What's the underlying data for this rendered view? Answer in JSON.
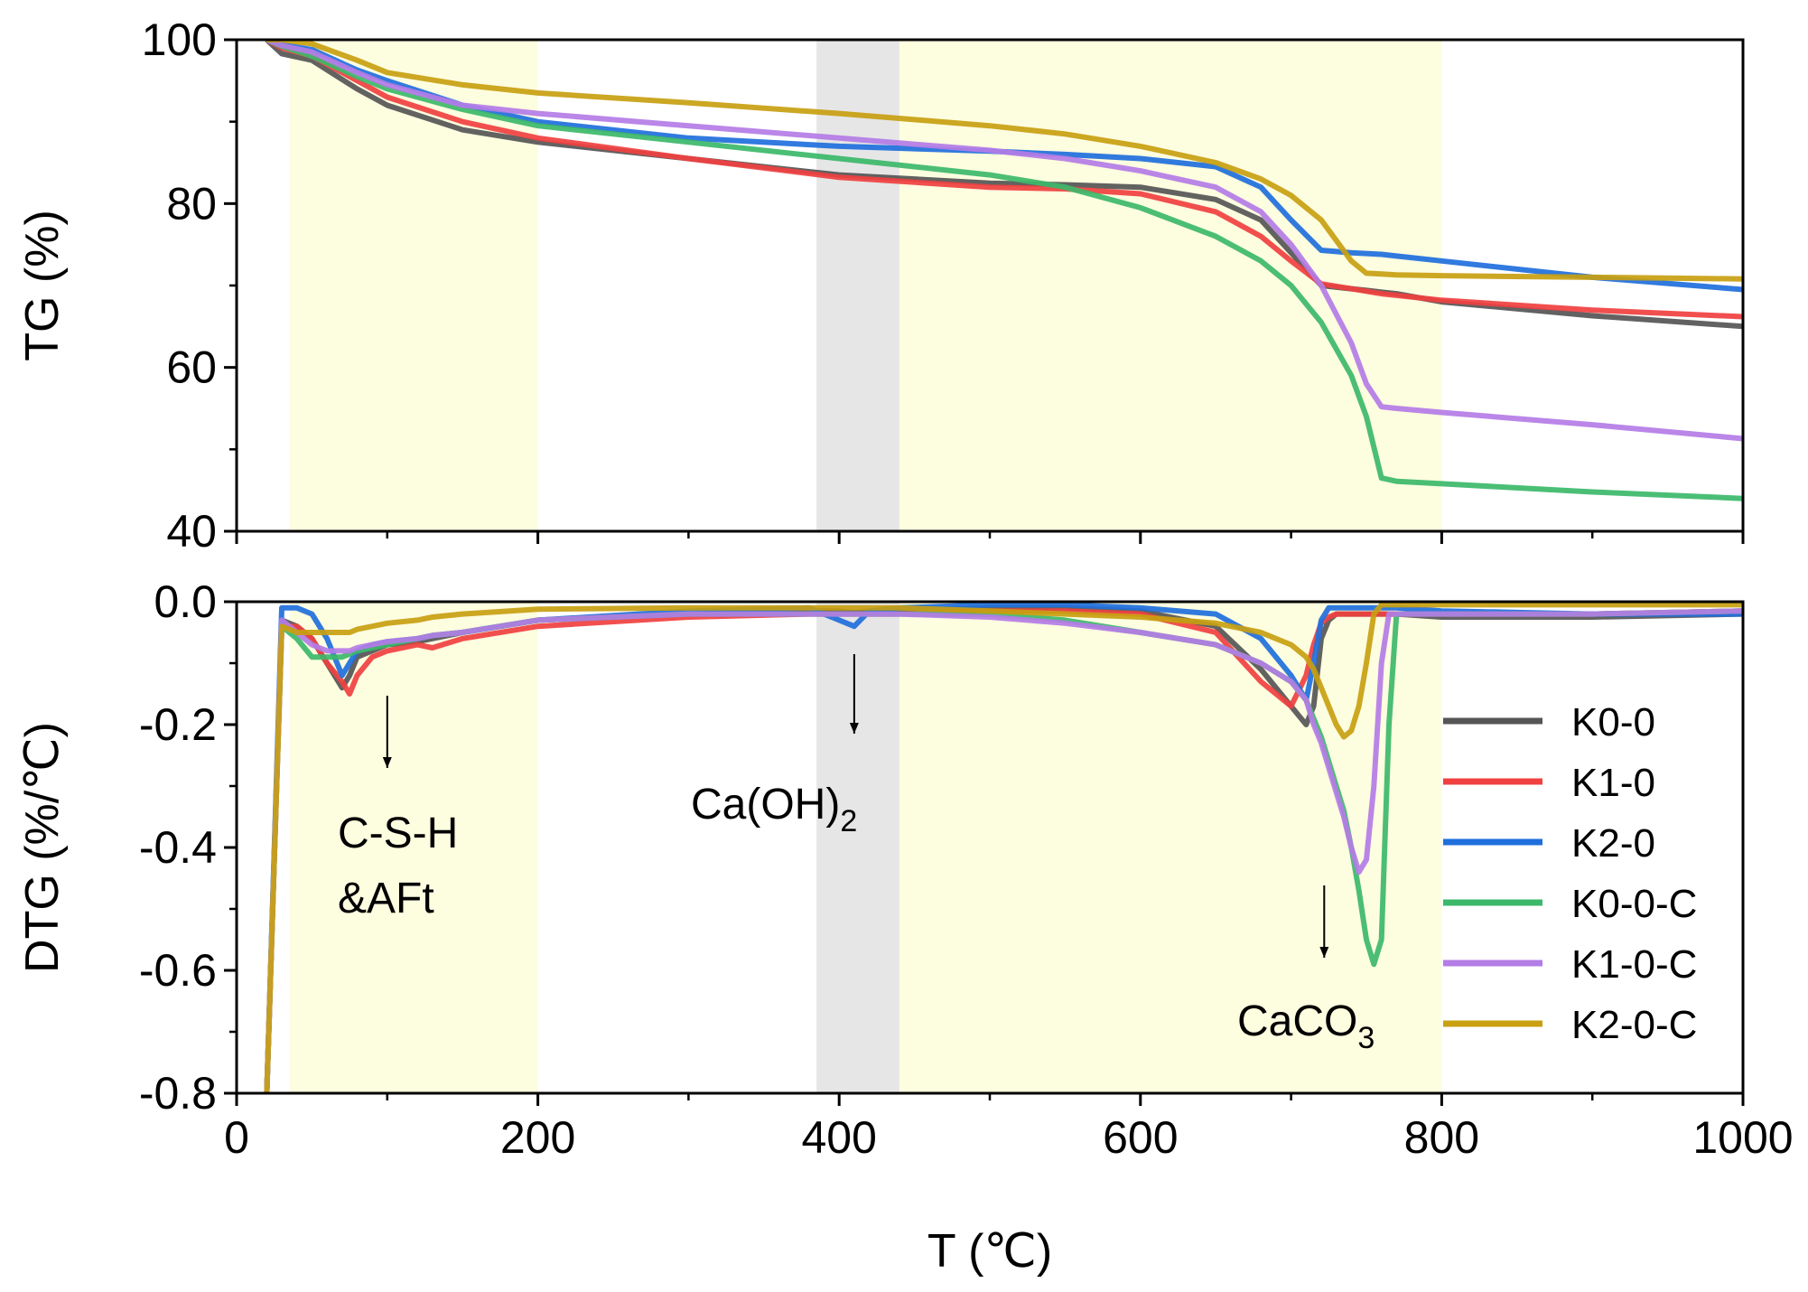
{
  "chart_data": [
    {
      "type": "line",
      "panel": "top",
      "title": "",
      "xlabel": "",
      "ylabel": "TG (%)",
      "xlim": [
        0,
        1000
      ],
      "ylim": [
        40,
        100
      ],
      "yticks": [
        "40",
        "60",
        "80",
        "100"
      ],
      "x": [
        20,
        30,
        50,
        80,
        100,
        150,
        200,
        300,
        400,
        500,
        550,
        600,
        650,
        680,
        700,
        720,
        740,
        750,
        760,
        770,
        800,
        900,
        1000
      ],
      "series": [
        {
          "name": "K0-0",
          "values": [
            100,
            98.3,
            97.5,
            94,
            92,
            89,
            87.5,
            85.5,
            83.5,
            82.5,
            82.3,
            82,
            80.5,
            78,
            74,
            70,
            69.6,
            69.4,
            69.2,
            69,
            68,
            66.3,
            65
          ]
        },
        {
          "name": "K1-0",
          "values": [
            100,
            99,
            98,
            95,
            93,
            90,
            88,
            85.5,
            83.2,
            82,
            81.8,
            81.2,
            79,
            76,
            73,
            70.2,
            69.6,
            69.3,
            69,
            68.8,
            68.2,
            67,
            66.2
          ]
        },
        {
          "name": "K2-0",
          "values": [
            100,
            99.4,
            98.8,
            96.3,
            95,
            92,
            90,
            88,
            87,
            86.4,
            86,
            85.5,
            84.5,
            82,
            78,
            74.3,
            74,
            73.9,
            73.8,
            73.6,
            73,
            71,
            69.5
          ]
        },
        {
          "name": "K0-0-C",
          "values": [
            100,
            99.2,
            98,
            95.5,
            94,
            91.5,
            89.5,
            87.5,
            85.5,
            83.5,
            82,
            79.5,
            76,
            73,
            70,
            65.5,
            59,
            54,
            46.5,
            46.1,
            45.8,
            44.8,
            44
          ]
        },
        {
          "name": "K1-0-C",
          "values": [
            100,
            99.3,
            98.5,
            96,
            94.5,
            92,
            91,
            89.5,
            88,
            86.5,
            85.5,
            84,
            82,
            79,
            75,
            70,
            63,
            58,
            55.2,
            55,
            54.5,
            53,
            51.3
          ]
        },
        {
          "name": "K2-0-C",
          "values": [
            100,
            100,
            99.5,
            97.5,
            96,
            94.5,
            93.5,
            92.3,
            91,
            89.5,
            88.5,
            87,
            85,
            83,
            81,
            78,
            73,
            71.5,
            71.4,
            71.3,
            71.2,
            71,
            70.8
          ]
        }
      ]
    },
    {
      "type": "line",
      "panel": "bottom",
      "title": "",
      "xlabel": "T (℃)",
      "ylabel": "DTG (%/℃)",
      "xlim": [
        0,
        1000
      ],
      "ylim": [
        -0.8,
        0
      ],
      "xticks": [
        "0",
        "200",
        "400",
        "600",
        "800",
        "1000"
      ],
      "yticks": [
        "-0.8",
        "-0.6",
        "-0.4",
        "-0.2",
        "0.0"
      ],
      "x": [
        20,
        30,
        40,
        50,
        60,
        70,
        75,
        80,
        90,
        100,
        120,
        130,
        150,
        200,
        300,
        380,
        400,
        410,
        420,
        440,
        500,
        550,
        600,
        650,
        680,
        700,
        710,
        715,
        720,
        725,
        730,
        735,
        740,
        745,
        750,
        755,
        760,
        765,
        770,
        800,
        900,
        1000
      ],
      "series": [
        {
          "name": "K0-0",
          "values": [
            -0.8,
            -0.03,
            -0.04,
            -0.06,
            -0.1,
            -0.14,
            -0.12,
            -0.09,
            -0.08,
            -0.07,
            -0.065,
            -0.06,
            -0.05,
            -0.03,
            -0.02,
            -0.015,
            -0.015,
            -0.018,
            -0.015,
            -0.015,
            -0.01,
            -0.01,
            -0.015,
            -0.04,
            -0.11,
            -0.17,
            -0.2,
            -0.17,
            -0.06,
            -0.03,
            -0.02,
            -0.02,
            -0.02,
            -0.02,
            -0.02,
            -0.02,
            -0.02,
            -0.02,
            -0.02,
            -0.025,
            -0.025,
            -0.02
          ]
        },
        {
          "name": "K1-0",
          "values": [
            -0.8,
            -0.04,
            -0.04,
            -0.06,
            -0.1,
            -0.13,
            -0.15,
            -0.12,
            -0.09,
            -0.08,
            -0.07,
            -0.075,
            -0.06,
            -0.04,
            -0.025,
            -0.02,
            -0.02,
            -0.02,
            -0.02,
            -0.02,
            -0.015,
            -0.015,
            -0.02,
            -0.05,
            -0.13,
            -0.17,
            -0.12,
            -0.07,
            -0.035,
            -0.025,
            -0.02,
            -0.02,
            -0.02,
            -0.02,
            -0.02,
            -0.02,
            -0.02,
            -0.02,
            -0.02,
            -0.02,
            -0.02,
            -0.015
          ]
        },
        {
          "name": "K2-0",
          "values": [
            -0.8,
            -0.01,
            -0.01,
            -0.02,
            -0.06,
            -0.12,
            -0.1,
            -0.08,
            -0.07,
            -0.065,
            -0.06,
            -0.055,
            -0.05,
            -0.03,
            -0.015,
            -0.01,
            -0.03,
            -0.04,
            -0.015,
            -0.01,
            -0.005,
            -0.005,
            -0.01,
            -0.02,
            -0.06,
            -0.12,
            -0.16,
            -0.1,
            -0.03,
            -0.01,
            -0.01,
            -0.01,
            -0.01,
            -0.01,
            -0.01,
            -0.01,
            -0.01,
            -0.01,
            -0.01,
            -0.015,
            -0.02,
            -0.02
          ]
        },
        {
          "name": "K0-0-C",
          "values": [
            -0.8,
            -0.04,
            -0.06,
            -0.09,
            -0.09,
            -0.09,
            -0.085,
            -0.08,
            -0.075,
            -0.07,
            -0.06,
            -0.055,
            -0.05,
            -0.03,
            -0.02,
            -0.02,
            -0.02,
            -0.02,
            -0.02,
            -0.02,
            -0.02,
            -0.03,
            -0.05,
            -0.07,
            -0.1,
            -0.13,
            -0.16,
            -0.19,
            -0.22,
            -0.26,
            -0.3,
            -0.34,
            -0.4,
            -0.47,
            -0.55,
            -0.59,
            -0.55,
            -0.2,
            -0.02,
            -0.02,
            -0.02,
            -0.015
          ]
        },
        {
          "name": "K1-0-C",
          "values": [
            -0.8,
            -0.03,
            -0.05,
            -0.07,
            -0.08,
            -0.08,
            -0.08,
            -0.075,
            -0.07,
            -0.065,
            -0.06,
            -0.055,
            -0.05,
            -0.03,
            -0.02,
            -0.02,
            -0.02,
            -0.02,
            -0.02,
            -0.02,
            -0.025,
            -0.035,
            -0.05,
            -0.07,
            -0.1,
            -0.13,
            -0.16,
            -0.2,
            -0.23,
            -0.27,
            -0.31,
            -0.35,
            -0.4,
            -0.44,
            -0.42,
            -0.3,
            -0.1,
            -0.02,
            -0.02,
            -0.02,
            -0.02,
            -0.015
          ]
        },
        {
          "name": "K2-0-C",
          "values": [
            -0.8,
            -0.04,
            -0.05,
            -0.05,
            -0.05,
            -0.05,
            -0.05,
            -0.045,
            -0.04,
            -0.035,
            -0.03,
            -0.025,
            -0.02,
            -0.012,
            -0.01,
            -0.01,
            -0.01,
            -0.01,
            -0.01,
            -0.01,
            -0.015,
            -0.02,
            -0.025,
            -0.035,
            -0.05,
            -0.07,
            -0.09,
            -0.11,
            -0.14,
            -0.17,
            -0.2,
            -0.22,
            -0.21,
            -0.17,
            -0.1,
            -0.02,
            -0.005,
            -0.005,
            -0.005,
            -0.005,
            -0.005,
            -0.005
          ]
        }
      ],
      "colors": {
        "K0-0": "#555555",
        "K1-0": "#f04040",
        "K2-0": "#1f6fdc",
        "K0-0-C": "#3cb86a",
        "K1-0-C": "#b47ce6",
        "K2-0-C": "#c8a010"
      },
      "shaded_regions": [
        {
          "from": 35,
          "to": 200,
          "color": "#fdfde0"
        },
        {
          "from": 385,
          "to": 440,
          "color": "#e6e6e6"
        },
        {
          "from": 440,
          "to": 800,
          "color": "#fdfde0"
        }
      ],
      "annotations": {
        "csh_line1": "C-S-H",
        "csh_line2": "&AFt",
        "caoh_main": "Ca(OH)",
        "caoh_sub": "2",
        "caco_main": "CaCO",
        "caco_sub": "3"
      },
      "legend_position": "right",
      "legend": [
        "K0-0",
        "K1-0",
        "K2-0",
        "K0-0-C",
        "K1-0-C",
        "K2-0-C"
      ]
    }
  ]
}
